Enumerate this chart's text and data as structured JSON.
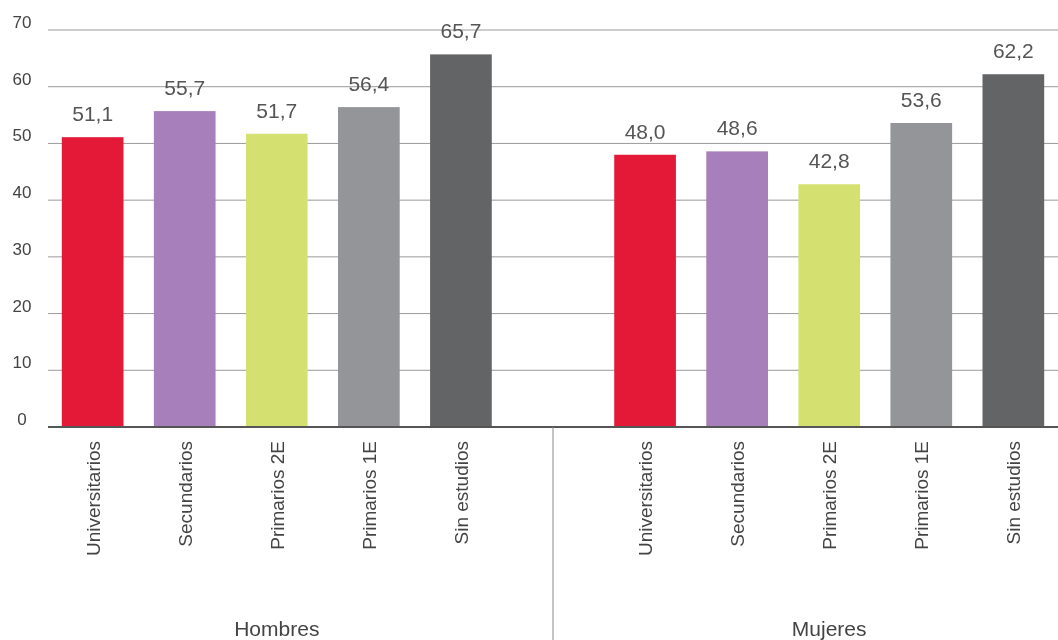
{
  "chart_data": {
    "type": "bar",
    "categories": [
      "Universitarios",
      "Secundarios",
      "Primarios 2E",
      "Primarios 1E",
      "Sin estudios",
      null,
      "Universitarios",
      "Secundarios",
      "Primarios 2E",
      "Primarios 1E",
      "Sin estudios"
    ],
    "values": [
      51.1,
      55.7,
      51.7,
      56.4,
      65.7,
      null,
      48.0,
      48.6,
      42.8,
      53.6,
      62.2
    ],
    "value_labels": [
      "51,1",
      "55,7",
      "51,7",
      "56,4",
      "65,7",
      null,
      "48,0",
      "48,6",
      "42,8",
      "53,6",
      "62,2"
    ],
    "colors": [
      "#e31937",
      "#a77fba",
      "#d4e170",
      "#939598",
      "#636466",
      null,
      "#e31937",
      "#a77fba",
      "#d4e170",
      "#939598",
      "#636466"
    ],
    "ylim": [
      0,
      70
    ],
    "yticks": [
      0,
      10,
      20,
      30,
      40,
      50,
      60,
      70
    ],
    "grid": "y",
    "annotations": [
      "Hombres",
      "Mujeres"
    ]
  }
}
